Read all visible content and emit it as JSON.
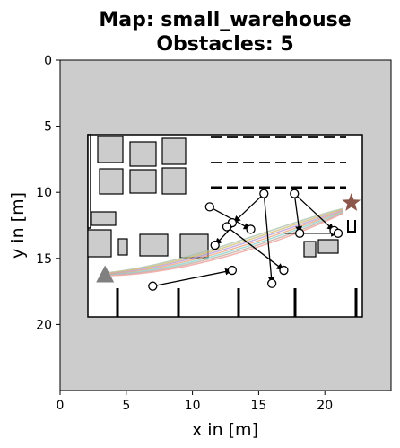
{
  "chart_data": {
    "type": "scatter",
    "title_line1": "Map: small_warehouse",
    "title_line2": "Obstacles: 5",
    "xlabel": "x in [m]",
    "ylabel": "y in [m]",
    "xlim": [
      0,
      25
    ],
    "ylim": [
      0,
      25
    ],
    "y_inverted": true,
    "x_ticks": [
      "0",
      "5",
      "10",
      "15",
      "20"
    ],
    "x_tick_values": [
      0,
      5,
      10,
      15,
      20
    ],
    "y_ticks": [
      "0",
      "5",
      "10",
      "15",
      "20"
    ],
    "y_tick_values": [
      0,
      5,
      10,
      15,
      20
    ],
    "colors": {
      "background_unknown": "#cccccc",
      "free_space": "#ffffff",
      "obstacle_fill": "#cccccc",
      "outline": "#000000",
      "start_marker": "#808080",
      "goal_marker": "#8c564b"
    },
    "start": {
      "x": 3.4,
      "y": 16.2
    },
    "goal": {
      "x": 22.0,
      "y": 10.8
    },
    "map_boundary": {
      "x_min": 2.1,
      "x_max": 22.6,
      "y_min": 5.6,
      "y_max": 19.2
    },
    "shelves": [
      {
        "x1": 11.3,
        "y1": 11.1,
        "x2": 14.4,
        "y2": 12.8
      },
      {
        "x1": 15.4,
        "y1": 10.1,
        "x2": 13.1,
        "y2": 12.3
      },
      {
        "x1": 15.4,
        "y1": 10.1,
        "x2": 16.0,
        "y2": 16.9
      },
      {
        "x1": 17.7,
        "y1": 10.1,
        "x2": 18.1,
        "y2": 13.1
      },
      {
        "x1": 17.7,
        "y1": 10.1,
        "x2": 20.7,
        "y2": 12.9
      },
      {
        "x1": 13.0,
        "y1": 12.6,
        "x2": 11.7,
        "y2": 14.0
      },
      {
        "x1": 12.6,
        "y1": 12.6,
        "x2": 16.9,
        "y2": 15.9
      },
      {
        "x1": 7.0,
        "y1": 17.1,
        "x2": 13.0,
        "y2": 15.9
      },
      {
        "x1": 17.0,
        "y1": 13.1,
        "x2": 21.0,
        "y2": 13.1
      }
    ],
    "obstacle_points": [
      {
        "x": 11.3,
        "y": 11.1
      },
      {
        "x": 15.4,
        "y": 10.1
      },
      {
        "x": 17.7,
        "y": 10.1
      },
      {
        "x": 13.0,
        "y": 12.3
      },
      {
        "x": 12.6,
        "y": 12.6
      },
      {
        "x": 11.7,
        "y": 14.0
      },
      {
        "x": 14.4,
        "y": 12.8
      },
      {
        "x": 18.1,
        "y": 13.1
      },
      {
        "x": 20.7,
        "y": 12.9
      },
      {
        "x": 21.0,
        "y": 13.1
      },
      {
        "x": 13.0,
        "y": 15.9
      },
      {
        "x": 16.9,
        "y": 15.9
      },
      {
        "x": 16.0,
        "y": 16.9
      },
      {
        "x": 7.0,
        "y": 17.1
      }
    ]
  }
}
